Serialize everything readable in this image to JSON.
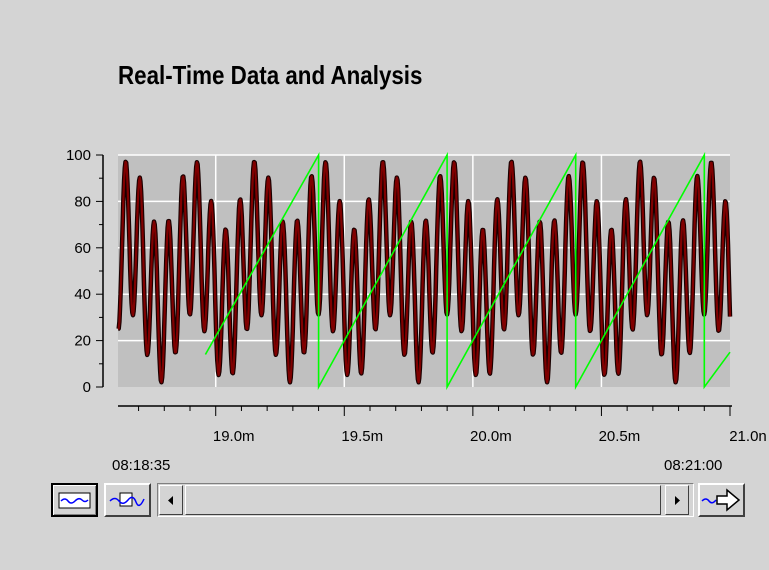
{
  "chart_data": {
    "type": "line",
    "title": "Real-Time Data and Analysis",
    "x_units": "minutes",
    "xlim": [
      18.62,
      21.0
    ],
    "ylim": [
      0,
      100
    ],
    "y_ticks": [
      0,
      20,
      40,
      60,
      80,
      100
    ],
    "y_tick_labels": [
      "0",
      "20",
      "40",
      "60",
      "80",
      "100"
    ],
    "x_ticks": [
      19.0,
      19.5,
      20.0,
      20.5,
      21.0
    ],
    "x_tick_labels": [
      "19.0m",
      "19.5m",
      "20.0m",
      "20.5m",
      "21.0n"
    ],
    "grid": true,
    "plot_background": "#c0c0c0",
    "series": [
      {
        "color": "#800000",
        "shape": "wave",
        "x_start": 18.62,
        "x_end": 21.0,
        "period": 0.5,
        "mean": 50,
        "component_1": {
          "amplitude": 15,
          "cycles_per_period": 2,
          "phase": 0.5
        },
        "component_2": {
          "amplitude": 33,
          "cycles_per_period": 9,
          "phase": -1.8
        },
        "min": 2,
        "max": 98
      },
      {
        "color": "#00ff00",
        "shape": "sawtooth",
        "x_start": 18.96,
        "x_end": 21.0,
        "period": 0.5,
        "ramps": [
          {
            "x0": 18.96,
            "y0": 14,
            "x1": 19.4,
            "y1": 100
          },
          {
            "x0": 19.4,
            "y0": 0,
            "x1": 19.9,
            "y1": 100
          },
          {
            "x0": 19.9,
            "y0": 0,
            "x1": 20.4,
            "y1": 100
          },
          {
            "x0": 20.4,
            "y0": 0,
            "x1": 20.9,
            "y1": 100
          },
          {
            "x0": 20.9,
            "y0": 0,
            "x1": 21.0,
            "y1": 15
          }
        ]
      }
    ]
  },
  "time_range": {
    "start": "08:18:35",
    "end": "08:21:00"
  },
  "toolbar": {
    "icons": [
      "trend-view-icon",
      "cursor-trace-icon",
      "scroll-left-arrow-icon",
      "scroll-right-arrow-icon",
      "go-to-latest-icon"
    ]
  }
}
